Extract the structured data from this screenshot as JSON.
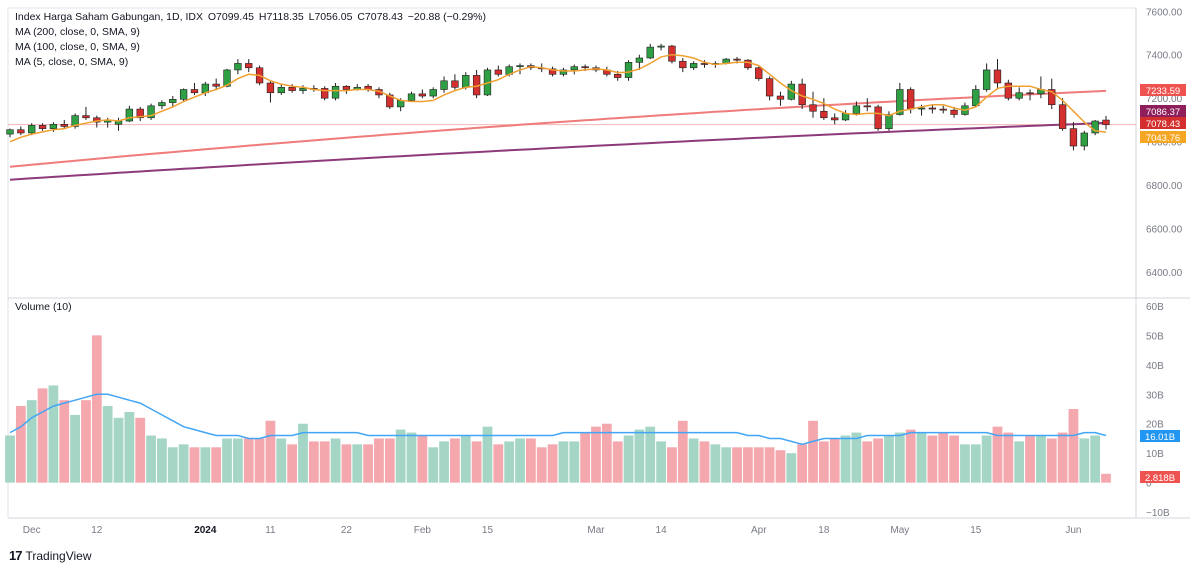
{
  "legend": {
    "symbol": "Index Harga Saham Gabungan, 1D, IDX",
    "open": "O7099.45",
    "high": "H7118.35",
    "low": "L7056.05",
    "close": "C7078.43",
    "change": "−20.88 (−0.29%)",
    "ma200": "MA (200, close, 0, SMA, 9)",
    "ma100": "MA (100, close, 0, SMA, 9)",
    "ma5": "MA (5, close, 0, SMA, 9)",
    "volume": "Volume (10)"
  },
  "brand": {
    "name": "TradingView"
  },
  "colors": {
    "up": "#26a69a",
    "down": "#ef5350",
    "candle_up": "#2ea043",
    "candle_down": "#d32f2f",
    "vol_up": "#a5d6c5",
    "vol_down": "#f4a7ad",
    "ma200": "#8e3a7a",
    "ma100": "#ef7b7b",
    "ma5": "#f0a030",
    "vol_ma": "#42a5f5",
    "price_line": "#f3b6b6"
  },
  "chart_data": {
    "type": "candlestick",
    "title": "Index Harga Saham Gabungan, 1D, IDX",
    "price_axis": {
      "ticks": [
        6400,
        6600,
        6800,
        7000,
        7200,
        7400,
        7600
      ],
      "tick_labels": [
        "6400.00",
        "6600.00",
        "6800.00",
        "7000.00",
        "7200.00",
        "7400.00",
        "7600.00"
      ],
      "range": [
        6290,
        7615
      ]
    },
    "volume_axis": {
      "ticks": [
        -10,
        0,
        10,
        20,
        30,
        40,
        50,
        60
      ],
      "tick_labels": [
        "−10B",
        "0",
        "10B",
        "20B",
        "30B",
        "40B",
        "50B",
        "60B"
      ],
      "range": [
        -12,
        62
      ]
    },
    "x_labels": [
      {
        "label": "Dec",
        "index": 2
      },
      {
        "label": "12",
        "index": 8
      },
      {
        "label": "2024",
        "index": 18
      },
      {
        "label": "11",
        "index": 24
      },
      {
        "label": "22",
        "index": 31
      },
      {
        "label": "Feb",
        "index": 38
      },
      {
        "label": "15",
        "index": 44
      },
      {
        "label": "Mar",
        "index": 54
      },
      {
        "label": "14",
        "index": 60
      },
      {
        "label": "Apr",
        "index": 69
      },
      {
        "label": "18",
        "index": 75
      },
      {
        "label": "May",
        "index": 82
      },
      {
        "label": "15",
        "index": 89
      },
      {
        "label": "Jun",
        "index": 98
      }
    ],
    "price_labels": [
      {
        "name": "MA100",
        "value": "7233.59",
        "color": "#ef5350"
      },
      {
        "name": "MA200",
        "value": "7086.37",
        "color": "#8e1f5a"
      },
      {
        "name": "Close",
        "value": "7078.43",
        "color": "#d32f2f"
      },
      {
        "name": "MA5",
        "value": "7043.76",
        "color": "#f5a623"
      }
    ],
    "volume_labels": [
      {
        "name": "Volume MA",
        "value": "16.01B",
        "color": "#2196f3"
      },
      {
        "name": "Volume",
        "value": "2.818B",
        "color": "#ef5350"
      }
    ],
    "candles": [
      [
        7035,
        7060,
        7020,
        7055
      ],
      [
        7055,
        7070,
        7030,
        7040
      ],
      [
        7040,
        7085,
        7030,
        7075
      ],
      [
        7075,
        7085,
        7050,
        7060
      ],
      [
        7060,
        7090,
        7045,
        7080
      ],
      [
        7080,
        7100,
        7060,
        7070
      ],
      [
        7070,
        7130,
        7060,
        7120
      ],
      [
        7120,
        7160,
        7100,
        7110
      ],
      [
        7110,
        7120,
        7065,
        7090
      ],
      [
        7090,
        7110,
        7065,
        7100
      ],
      [
        7080,
        7110,
        7050,
        7095
      ],
      [
        7095,
        7165,
        7090,
        7150
      ],
      [
        7150,
        7160,
        7095,
        7110
      ],
      [
        7110,
        7175,
        7100,
        7165
      ],
      [
        7165,
        7190,
        7150,
        7180
      ],
      [
        7180,
        7210,
        7160,
        7195
      ],
      [
        7195,
        7245,
        7185,
        7240
      ],
      [
        7240,
        7270,
        7215,
        7225
      ],
      [
        7225,
        7275,
        7210,
        7265
      ],
      [
        7265,
        7290,
        7240,
        7255
      ],
      [
        7255,
        7335,
        7250,
        7330
      ],
      [
        7330,
        7380,
        7310,
        7360
      ],
      [
        7360,
        7380,
        7320,
        7340
      ],
      [
        7340,
        7350,
        7260,
        7270
      ],
      [
        7270,
        7280,
        7180,
        7225
      ],
      [
        7225,
        7265,
        7215,
        7250
      ],
      [
        7250,
        7265,
        7225,
        7235
      ],
      [
        7235,
        7260,
        7220,
        7245
      ],
      [
        7245,
        7260,
        7230,
        7240
      ],
      [
        7245,
        7255,
        7190,
        7200
      ],
      [
        7200,
        7270,
        7190,
        7255
      ],
      [
        7255,
        7260,
        7220,
        7240
      ],
      [
        7240,
        7265,
        7235,
        7250
      ],
      [
        7255,
        7265,
        7230,
        7240
      ],
      [
        7240,
        7250,
        7200,
        7215
      ],
      [
        7215,
        7225,
        7150,
        7160
      ],
      [
        7160,
        7200,
        7140,
        7190
      ],
      [
        7190,
        7230,
        7185,
        7220
      ],
      [
        7220,
        7240,
        7200,
        7210
      ],
      [
        7210,
        7250,
        7200,
        7240
      ],
      [
        7240,
        7300,
        7225,
        7280
      ],
      [
        7280,
        7310,
        7240,
        7250
      ],
      [
        7250,
        7320,
        7240,
        7305
      ],
      [
        7305,
        7330,
        7200,
        7215
      ],
      [
        7215,
        7340,
        7210,
        7330
      ],
      [
        7330,
        7350,
        7300,
        7310
      ],
      [
        7310,
        7355,
        7300,
        7345
      ],
      [
        7345,
        7360,
        7310,
        7350
      ],
      [
        7350,
        7360,
        7330,
        7340
      ],
      [
        7340,
        7360,
        7320,
        7335
      ],
      [
        7335,
        7345,
        7300,
        7310
      ],
      [
        7310,
        7340,
        7300,
        7330
      ],
      [
        7330,
        7355,
        7310,
        7345
      ],
      [
        7345,
        7355,
        7325,
        7340
      ],
      [
        7340,
        7350,
        7320,
        7330
      ],
      [
        7330,
        7345,
        7300,
        7310
      ],
      [
        7310,
        7325,
        7280,
        7295
      ],
      [
        7295,
        7375,
        7280,
        7365
      ],
      [
        7365,
        7400,
        7330,
        7385
      ],
      [
        7385,
        7450,
        7380,
        7435
      ],
      [
        7435,
        7450,
        7420,
        7440
      ],
      [
        7440,
        7445,
        7360,
        7370
      ],
      [
        7370,
        7385,
        7320,
        7340
      ],
      [
        7340,
        7370,
        7330,
        7360
      ],
      [
        7360,
        7375,
        7340,
        7355
      ],
      [
        7355,
        7370,
        7340,
        7360
      ],
      [
        7360,
        7385,
        7355,
        7380
      ],
      [
        7380,
        7390,
        7360,
        7375
      ],
      [
        7375,
        7380,
        7330,
        7340
      ],
      [
        7340,
        7345,
        7280,
        7290
      ],
      [
        7290,
        7300,
        7190,
        7210
      ],
      [
        7210,
        7230,
        7165,
        7195
      ],
      [
        7195,
        7280,
        7190,
        7265
      ],
      [
        7265,
        7290,
        7150,
        7170
      ],
      [
        7170,
        7230,
        7110,
        7140
      ],
      [
        7140,
        7200,
        7100,
        7110
      ],
      [
        7110,
        7130,
        7080,
        7100
      ],
      [
        7100,
        7145,
        7095,
        7130
      ],
      [
        7130,
        7185,
        7120,
        7165
      ],
      [
        7165,
        7200,
        7140,
        7160
      ],
      [
        7160,
        7170,
        7050,
        7060
      ],
      [
        7060,
        7140,
        7050,
        7125
      ],
      [
        7125,
        7270,
        7120,
        7240
      ],
      [
        7240,
        7250,
        7130,
        7150
      ],
      [
        7150,
        7170,
        7120,
        7155
      ],
      [
        7155,
        7170,
        7130,
        7150
      ],
      [
        7150,
        7165,
        7130,
        7145
      ],
      [
        7145,
        7160,
        7110,
        7125
      ],
      [
        7125,
        7180,
        7120,
        7165
      ],
      [
        7165,
        7260,
        7160,
        7240
      ],
      [
        7240,
        7360,
        7230,
        7330
      ],
      [
        7330,
        7380,
        7240,
        7270
      ],
      [
        7270,
        7285,
        7190,
        7200
      ],
      [
        7200,
        7250,
        7190,
        7225
      ],
      [
        7225,
        7240,
        7190,
        7220
      ],
      [
        7220,
        7300,
        7200,
        7240
      ],
      [
        7240,
        7290,
        7150,
        7170
      ],
      [
        7170,
        7200,
        7050,
        7060
      ],
      [
        7060,
        7090,
        6960,
        6980
      ],
      [
        6980,
        7050,
        6960,
        7040
      ],
      [
        7040,
        7100,
        7030,
        7095
      ],
      [
        7099.45,
        7118.35,
        7056.05,
        7078.43
      ]
    ],
    "volumes": [
      16,
      26,
      28,
      32,
      33,
      28,
      23,
      28,
      50,
      26,
      22,
      24,
      22,
      16,
      15,
      12,
      13,
      12,
      12,
      12,
      15,
      15,
      15,
      15,
      21,
      15,
      13,
      20,
      14,
      14,
      15,
      13,
      13,
      13,
      15,
      15,
      18,
      17,
      16,
      12,
      14,
      15,
      16,
      14,
      19,
      13,
      14,
      15,
      15,
      12,
      13,
      14,
      14,
      17,
      19,
      20,
      14,
      16,
      18,
      19,
      14,
      12,
      21,
      15,
      14,
      13,
      12,
      12,
      12,
      12,
      12,
      11,
      10,
      13,
      21,
      14,
      15,
      16,
      17,
      14,
      15,
      16,
      17,
      18,
      17,
      16,
      17,
      16,
      13,
      13,
      16,
      19,
      17,
      14,
      16,
      16,
      15,
      17,
      25,
      15,
      16,
      3
    ],
    "ma5": [
      7000,
      7020,
      7035,
      7045,
      7055,
      7060,
      7075,
      7085,
      7095,
      7100,
      7095,
      7110,
      7115,
      7120,
      7140,
      7160,
      7185,
      7205,
      7225,
      7240,
      7260,
      7290,
      7310,
      7305,
      7280,
      7265,
      7255,
      7250,
      7240,
      7235,
      7235,
      7235,
      7240,
      7240,
      7232,
      7210,
      7190,
      7185,
      7185,
      7190,
      7215,
      7235,
      7250,
      7255,
      7270,
      7285,
      7310,
      7330,
      7345,
      7340,
      7330,
      7325,
      7325,
      7330,
      7335,
      7330,
      7318,
      7320,
      7335,
      7360,
      7390,
      7400,
      7395,
      7385,
      7365,
      7355,
      7360,
      7365,
      7365,
      7350,
      7310,
      7270,
      7235,
      7210,
      7195,
      7175,
      7150,
      7130,
      7125,
      7130,
      7130,
      7120,
      7140,
      7150,
      7160,
      7170,
      7170,
      7155,
      7145,
      7160,
      7205,
      7245,
      7255,
      7255,
      7255,
      7240,
      7230,
      7190,
      7140,
      7090,
      7050,
      7043.76
    ],
    "ma100_start": 6885,
    "ma100_end": 7233.59,
    "ma200_start": 6825,
    "ma200_end": 7086.37,
    "vol_ma": [
      17,
      19,
      22,
      24,
      26,
      27,
      28,
      29,
      30,
      30,
      29,
      28,
      27,
      25,
      23,
      21,
      19,
      18,
      17,
      16,
      16,
      16,
      15,
      15,
      16,
      16,
      16,
      17,
      17,
      17,
      17,
      17,
      17,
      16,
      16,
      16,
      16,
      16,
      16,
      16,
      16,
      16,
      16,
      16,
      16,
      16,
      16,
      16,
      16,
      16,
      16,
      17,
      17,
      17,
      17,
      17,
      17,
      17,
      17,
      17,
      17,
      17,
      17,
      17,
      17,
      17,
      17,
      17,
      16,
      16,
      15,
      15,
      14,
      13,
      14,
      15,
      15,
      15,
      15,
      16,
      16,
      16,
      16,
      17,
      17,
      17,
      17,
      17,
      17,
      17,
      17,
      16,
      16,
      16,
      16,
      16,
      16,
      16,
      16,
      17,
      17,
      16.01
    ]
  }
}
